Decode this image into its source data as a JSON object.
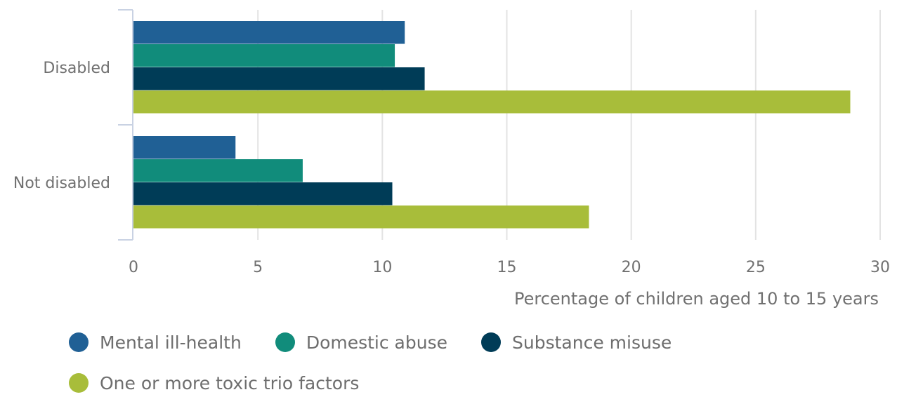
{
  "chart_data": {
    "type": "bar",
    "orientation": "horizontal",
    "categories": [
      "Disabled",
      "Not disabled"
    ],
    "series": [
      {
        "name": "Mental ill-health",
        "color": "#206095",
        "values": [
          10.9,
          4.1
        ]
      },
      {
        "name": "Domestic abuse",
        "color": "#118C7B",
        "values": [
          10.5,
          6.8
        ]
      },
      {
        "name": "Substance misuse",
        "color": "#003C57",
        "values": [
          11.7,
          10.4
        ]
      },
      {
        "name": "One or more toxic trio factors",
        "color": "#A8BD3A",
        "values": [
          28.8,
          18.3
        ]
      }
    ],
    "xlabel": "Percentage of children aged 10 to 15 years",
    "ylabel": "",
    "xlim": [
      0,
      30
    ],
    "xticks": [
      0,
      5,
      10,
      15,
      20,
      25,
      30
    ],
    "grid": "vertical",
    "legend_position": "bottom"
  }
}
